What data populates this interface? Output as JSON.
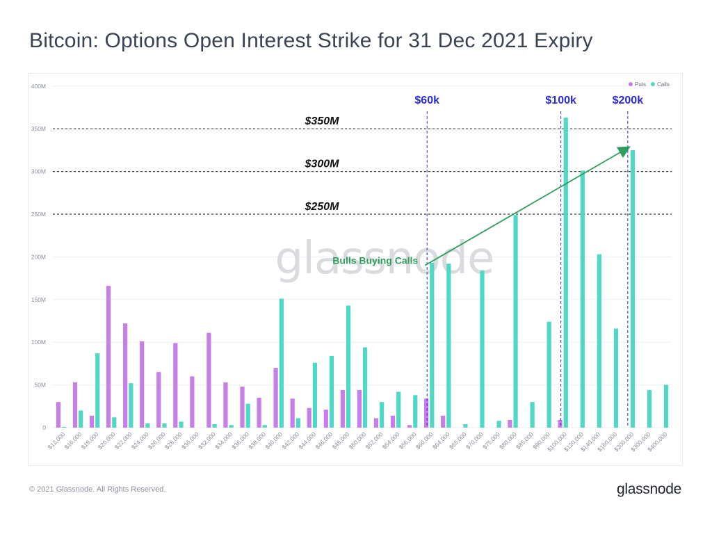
{
  "title": "Bitcoin: Options Open Interest Strike for 31 Dec 2021 Expiry",
  "footer": {
    "copyright": "© 2021 Glassnode. All Rights Reserved.",
    "brand": "glassnode"
  },
  "watermark": "glassnode",
  "colors": {
    "puts": "#c77dea",
    "calls": "#4fd8c4",
    "strike_marker": "#2b2bd6",
    "arrow": "#2e9e5e",
    "grid": "#eceef2",
    "title": "#3b4251"
  },
  "chart_data": {
    "type": "bar",
    "categories": [
      "$12,000",
      "$16,000",
      "$18,000",
      "$20,000",
      "$22,000",
      "$24,000",
      "$26,000",
      "$28,000",
      "$30,000",
      "$32,000",
      "$34,000",
      "$36,000",
      "$38,000",
      "$40,000",
      "$42,000",
      "$44,000",
      "$46,000",
      "$48,000",
      "$50,000",
      "$52,000",
      "$54,000",
      "$56,000",
      "$60,000",
      "$64,000",
      "$65,000",
      "$70,000",
      "$75,000",
      "$80,000",
      "$85,000",
      "$90,000",
      "$100,000",
      "$120,000",
      "$140,000",
      "$160,000",
      "$200,000",
      "$300,000",
      "$400,000"
    ],
    "series": [
      {
        "name": "Puts",
        "values": [
          30,
          53,
          14,
          166,
          122,
          101,
          65,
          99,
          60,
          111,
          53,
          48,
          35,
          70,
          34,
          23,
          21,
          44,
          44,
          11,
          14,
          3,
          34,
          14,
          0,
          0,
          0,
          9,
          0,
          0,
          9,
          0,
          0,
          0,
          0,
          0,
          0
        ]
      },
      {
        "name": "Calls",
        "values": [
          1,
          20,
          87,
          12,
          52,
          5,
          5,
          7,
          0,
          4,
          3,
          28,
          3,
          151,
          11,
          76,
          84,
          143,
          94,
          30,
          42,
          38,
          193,
          192,
          4,
          184,
          8,
          249,
          30,
          124,
          363,
          301,
          203,
          116,
          325,
          44,
          50
        ]
      }
    ],
    "yticks": [
      "0",
      "50M",
      "100M",
      "150M",
      "200M",
      "250M",
      "300M",
      "350M",
      "400M"
    ],
    "ylim": [
      0,
      400
    ],
    "y_unit": "M",
    "legend": [
      {
        "label": "Puts"
      },
      {
        "label": "Calls"
      }
    ],
    "legend_position": "top-right",
    "grid": true,
    "annotations": {
      "hlines": [
        {
          "value": 350,
          "label": "$350M"
        },
        {
          "value": 300,
          "label": "$300M"
        },
        {
          "value": 250,
          "label": "$250M"
        }
      ],
      "vlines": [
        {
          "category": "$60,000",
          "label": "$60k"
        },
        {
          "category": "$100,000",
          "label": "$100k"
        },
        {
          "category": "$200,000",
          "label": "$200k"
        }
      ],
      "arrow": {
        "label": "Bulls Buying Calls",
        "from": {
          "category": "$60,000",
          "value": 190
        },
        "to": {
          "category": "$200,000",
          "value": 328
        }
      }
    }
  }
}
